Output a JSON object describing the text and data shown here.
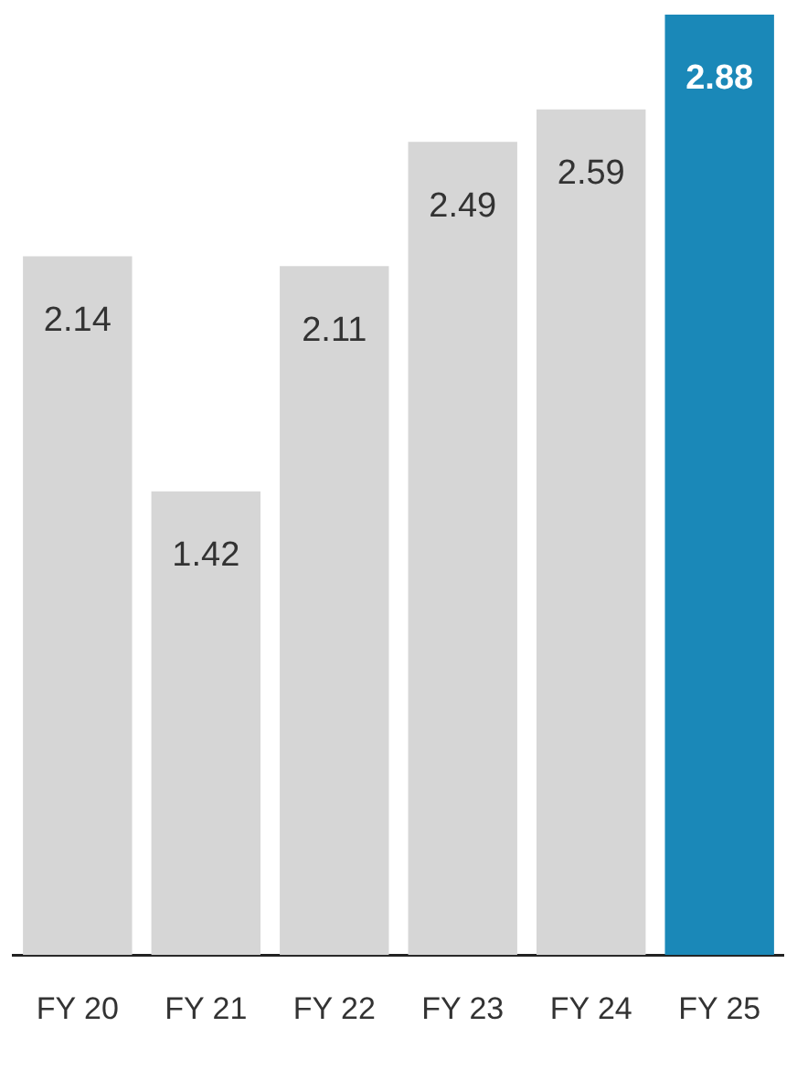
{
  "chart_data": {
    "type": "bar",
    "categories": [
      "FY 20",
      "FY 21",
      "FY 22",
      "FY 23",
      "FY 24",
      "FY 25"
    ],
    "values": [
      2.14,
      1.42,
      2.11,
      2.49,
      2.59,
      2.88
    ],
    "colors": [
      "#d6d6d6",
      "#d6d6d6",
      "#d6d6d6",
      "#d6d6d6",
      "#d6d6d6",
      "#1a88b8"
    ],
    "data_labels": true
  }
}
